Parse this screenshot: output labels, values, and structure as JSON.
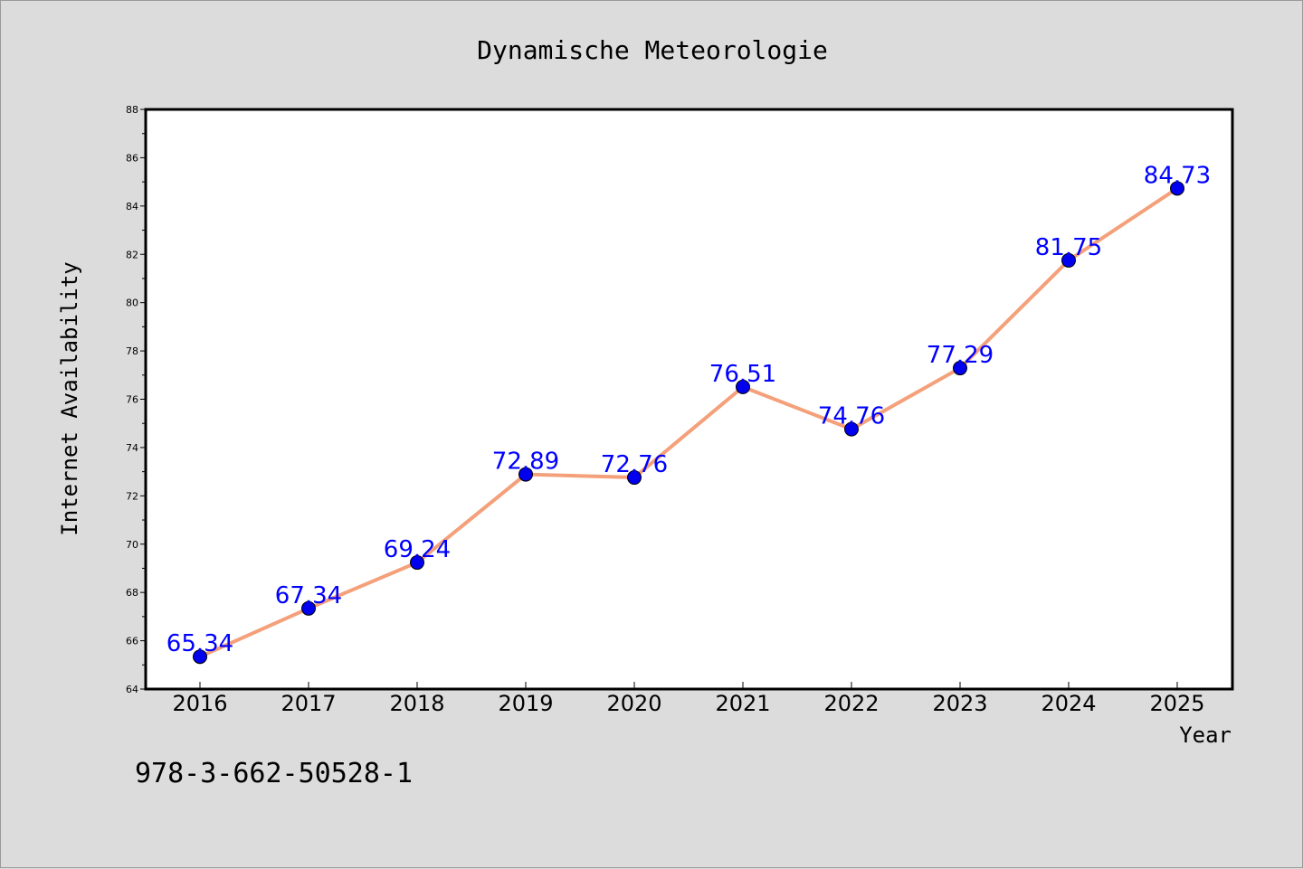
{
  "chart_data": {
    "type": "line",
    "title": "Dynamische Meteorologie",
    "xlabel": "Year",
    "ylabel": "Internet Availability",
    "categories": [
      "2016",
      "2017",
      "2018",
      "2019",
      "2020",
      "2021",
      "2022",
      "2023",
      "2024",
      "2025"
    ],
    "series": [
      {
        "values": [
          65.34,
          67.34,
          69.24,
          72.89,
          72.76,
          76.51,
          74.76,
          77.29,
          81.75,
          84.73
        ],
        "data_labels": [
          "65.34",
          "67.34",
          "69.24",
          "72.89",
          "72.76",
          "76.51",
          "74.76",
          "77.29",
          "81.75",
          "84.73"
        ],
        "line_color": "#f4a07a",
        "marker_color": "#0000ee"
      }
    ],
    "ylim": [
      64,
      88
    ],
    "yticks": [
      "64",
      "66",
      "68",
      "70",
      "72",
      "74",
      "76",
      "78",
      "80",
      "82",
      "84",
      "86",
      "88"
    ],
    "grid": false,
    "legend": "none",
    "label_color": "#0000ff",
    "plot_background": "#ffffff",
    "figure_background": "#dcdcdc"
  },
  "annotation": "978-3-662-50528-1"
}
